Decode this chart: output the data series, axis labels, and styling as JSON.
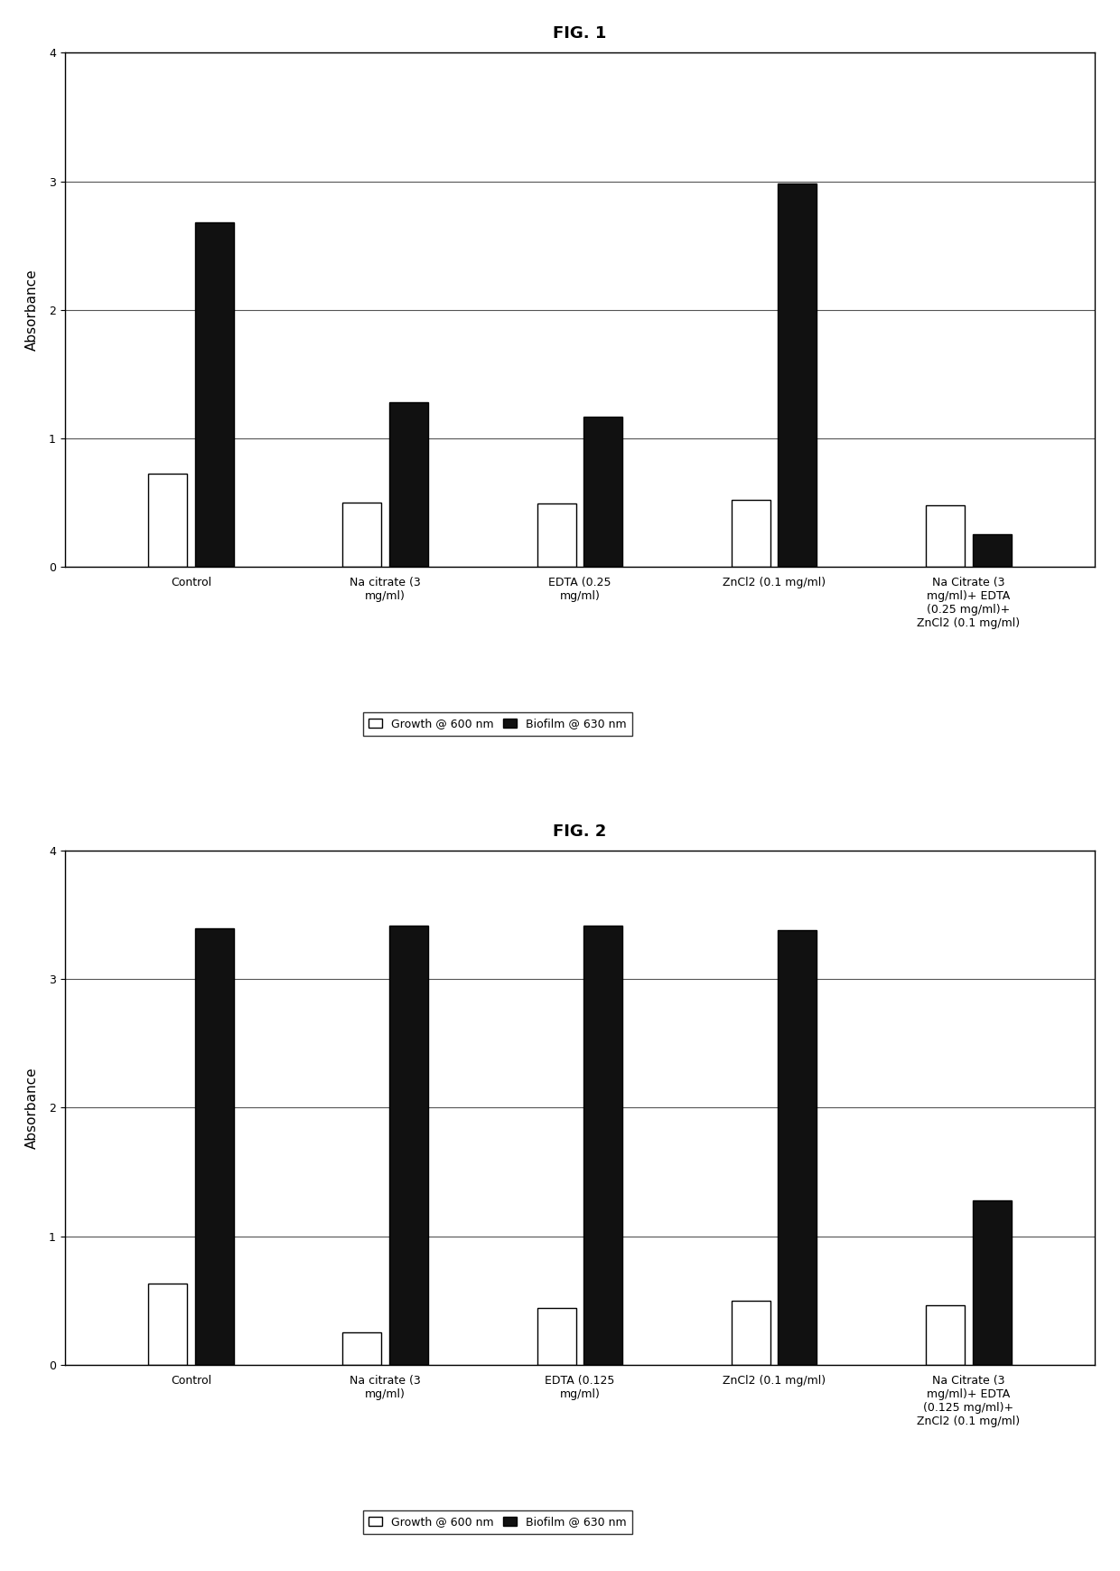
{
  "fig1": {
    "title": "FIG. 1",
    "categories": [
      "Control",
      "Na citrate (3\nmg/ml)",
      "EDTA (0.25\nmg/ml)",
      "ZnCl2 (0.1 mg/ml)",
      "Na Citrate (3\nmg/ml)+ EDTA\n(0.25 mg/ml)+\nZnCl2 (0.1 mg/ml)"
    ],
    "growth_values": [
      0.72,
      0.5,
      0.49,
      0.52,
      0.48
    ],
    "biofilm_values": [
      2.68,
      1.28,
      1.17,
      2.98,
      0.25
    ],
    "ylabel": "Absorbance",
    "ylim": [
      0,
      4
    ],
    "yticks": [
      0,
      1,
      2,
      3,
      4
    ],
    "legend_growth": "Growth @ 600 nm",
    "legend_biofilm": "Biofilm @ 630 nm"
  },
  "fig2": {
    "title": "FIG. 2",
    "categories": [
      "Control",
      "Na citrate (3\nmg/ml)",
      "EDTA (0.125\nmg/ml)",
      "ZnCl2 (0.1 mg/ml)",
      "Na Citrate (3\nmg/ml)+ EDTA\n(0.125 mg/ml)+\nZnCl2 (0.1 mg/ml)"
    ],
    "growth_values": [
      0.63,
      0.25,
      0.44,
      0.5,
      0.46
    ],
    "biofilm_values": [
      3.4,
      3.42,
      3.42,
      3.38,
      1.28
    ],
    "ylabel": "Absorbance",
    "ylim": [
      0,
      4
    ],
    "yticks": [
      0,
      1,
      2,
      3,
      4
    ],
    "legend_growth": "Growth @ 600 nm",
    "legend_biofilm": "Biofilm @ 630 nm"
  },
  "bar_width": 0.2,
  "bar_gap": 0.04,
  "growth_color": "#ffffff",
  "biofilm_color": "#111111",
  "edge_color": "#000000",
  "background_color": "#ffffff",
  "title_fontsize": 13,
  "axis_label_fontsize": 11,
  "tick_fontsize": 9,
  "legend_fontsize": 9
}
